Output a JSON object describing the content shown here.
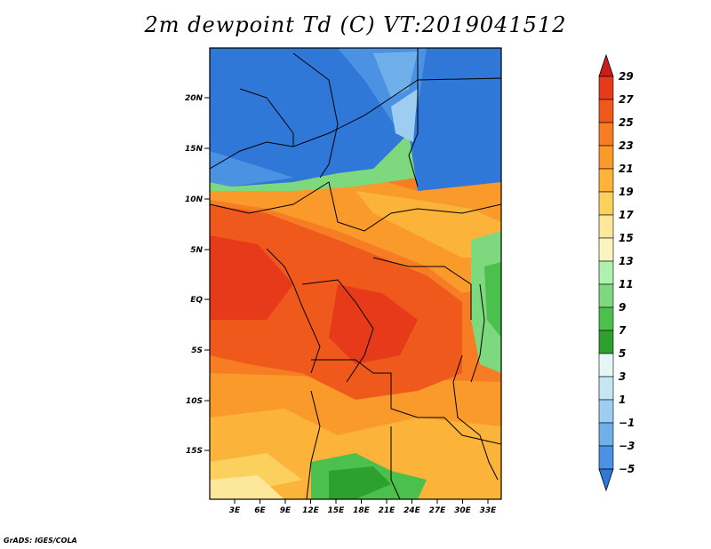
{
  "title": "2m dewpoint Td (C) VT:2019041512",
  "credit": "GrADS: IGES/COLA",
  "map": {
    "lat_ticks": [
      "20N",
      "15N",
      "10N",
      "5N",
      "EQ",
      "5S",
      "10S",
      "15S"
    ],
    "lon_ticks": [
      "3E",
      "6E",
      "9E",
      "12E",
      "15E",
      "18E",
      "21E",
      "24E",
      "27E",
      "30E",
      "33E"
    ]
  },
  "colorbar": {
    "labels": [
      "29",
      "27",
      "25",
      "23",
      "21",
      "19",
      "17",
      "15",
      "13",
      "11",
      "9",
      "7",
      "5",
      "3",
      "1",
      "−1",
      "−3",
      "−5"
    ],
    "colors": [
      "#cc1d1d",
      "#e63a1a",
      "#ef5a1c",
      "#f77d24",
      "#fa9a2a",
      "#fbb33a",
      "#fcd05c",
      "#fde79a",
      "#faf5c0",
      "#b0f0b0",
      "#7ed87e",
      "#4cc04c",
      "#2ea02e",
      "#e6f6f6",
      "#c6e6f4",
      "#9dcdf0",
      "#6fb0ea",
      "#4b92e2",
      "#2f78d8"
    ]
  }
}
